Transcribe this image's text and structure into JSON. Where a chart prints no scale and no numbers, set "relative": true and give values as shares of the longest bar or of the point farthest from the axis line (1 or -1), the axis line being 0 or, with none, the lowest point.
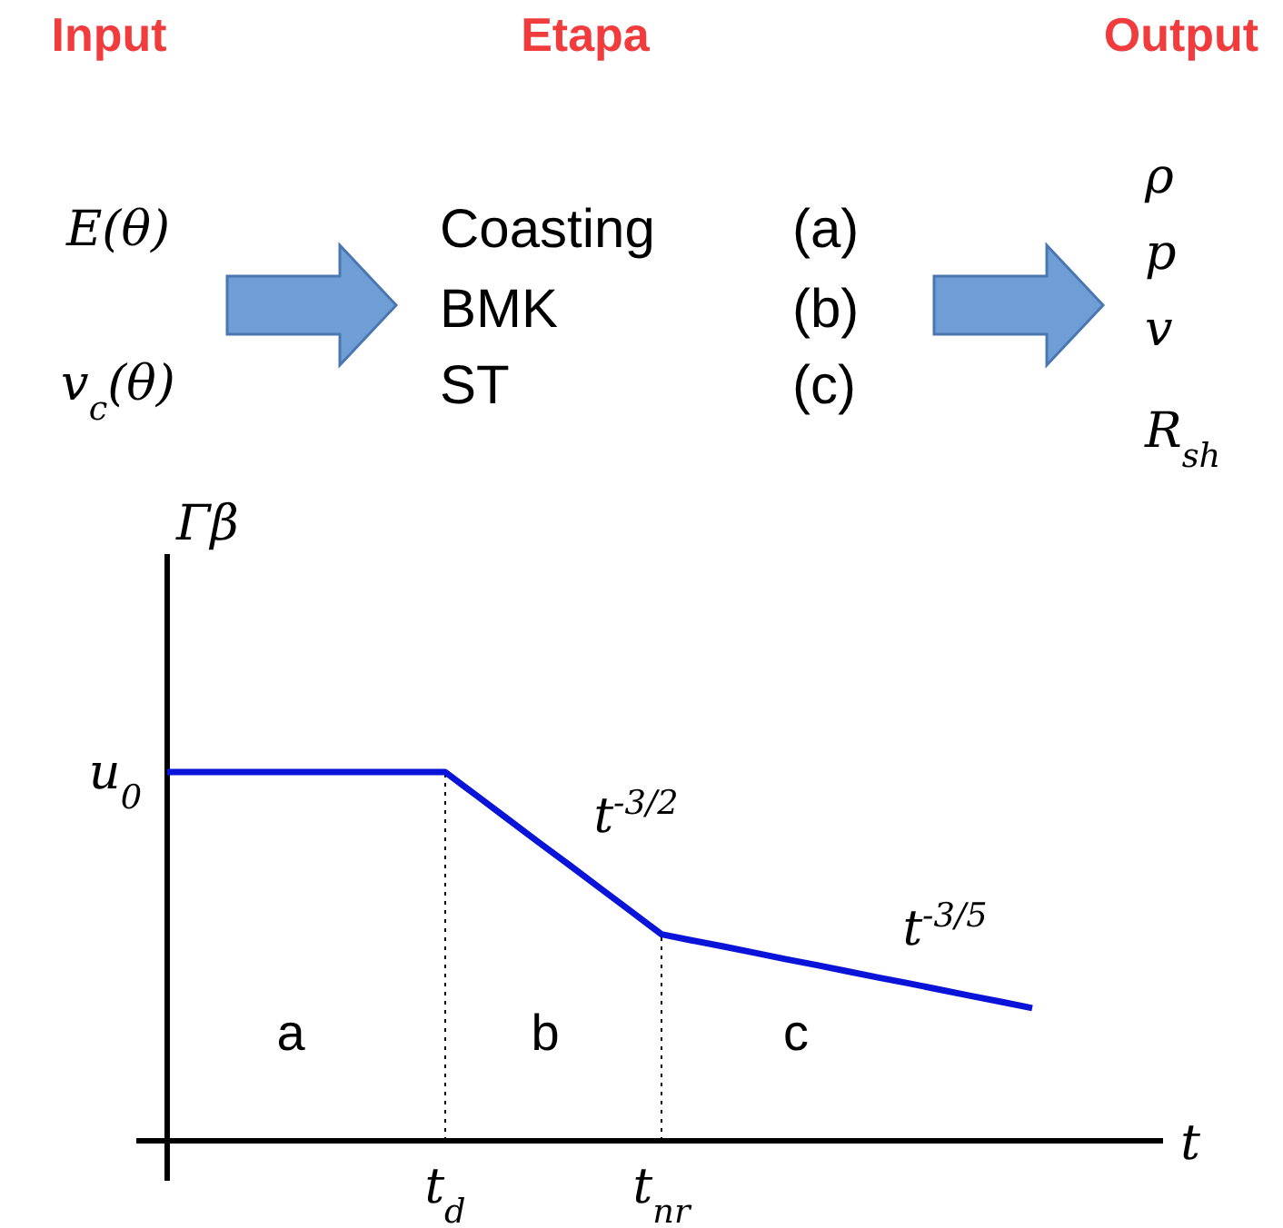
{
  "chart_data": {
    "type": "line",
    "relative": true,
    "xlabel": "t",
    "ylabel": "Γβ",
    "categories": [
      null,
      null,
      null,
      null,
      null,
      null,
      null,
      null,
      null,
      "t$_{d}$",
      null,
      null,
      null,
      null,
      null,
      null,
      "t$_{nr}$",
      null,
      null,
      null,
      null,
      null,
      null,
      null,
      null,
      null,
      null,
      null,
      null,
      null,
      null,
      null,
      null
    ],
    "series": [
      {
        "color": "#0a14d8",
        "values": [
          1,
          1,
          1,
          1,
          1,
          1,
          1,
          1,
          1,
          1,
          0.937,
          0.874,
          0.811,
          0.749,
          0.686,
          0.623,
          0.56,
          0.543,
          0.527,
          0.51,
          0.493,
          0.477,
          0.46,
          0.443,
          0.427,
          0.41,
          0.393,
          0.377,
          0.36,
          null,
          null,
          null,
          null
        ]
      }
    ],
    "ref_lines": [
      {
        "axis": "x",
        "value": "t$_{d}$",
        "line_style": "dotted",
        "color": "#000000"
      },
      {
        "axis": "x",
        "value": "t$_{nr}$",
        "line_style": "dotted",
        "color": "#000000"
      }
    ],
    "annotations": [
      "Input",
      "Etapa",
      "Output",
      "E(θ)",
      "v$_{c}$(θ)",
      "Coasting",
      "BMK",
      "ST",
      "(a)",
      "(b)",
      "(c)",
      "ρ",
      "p",
      "v",
      "R$_{sh}$",
      "u$_{0}$",
      "t$^{-3/2}$",
      "t$^{-3/5}$",
      "a",
      "b",
      "c"
    ]
  }
}
